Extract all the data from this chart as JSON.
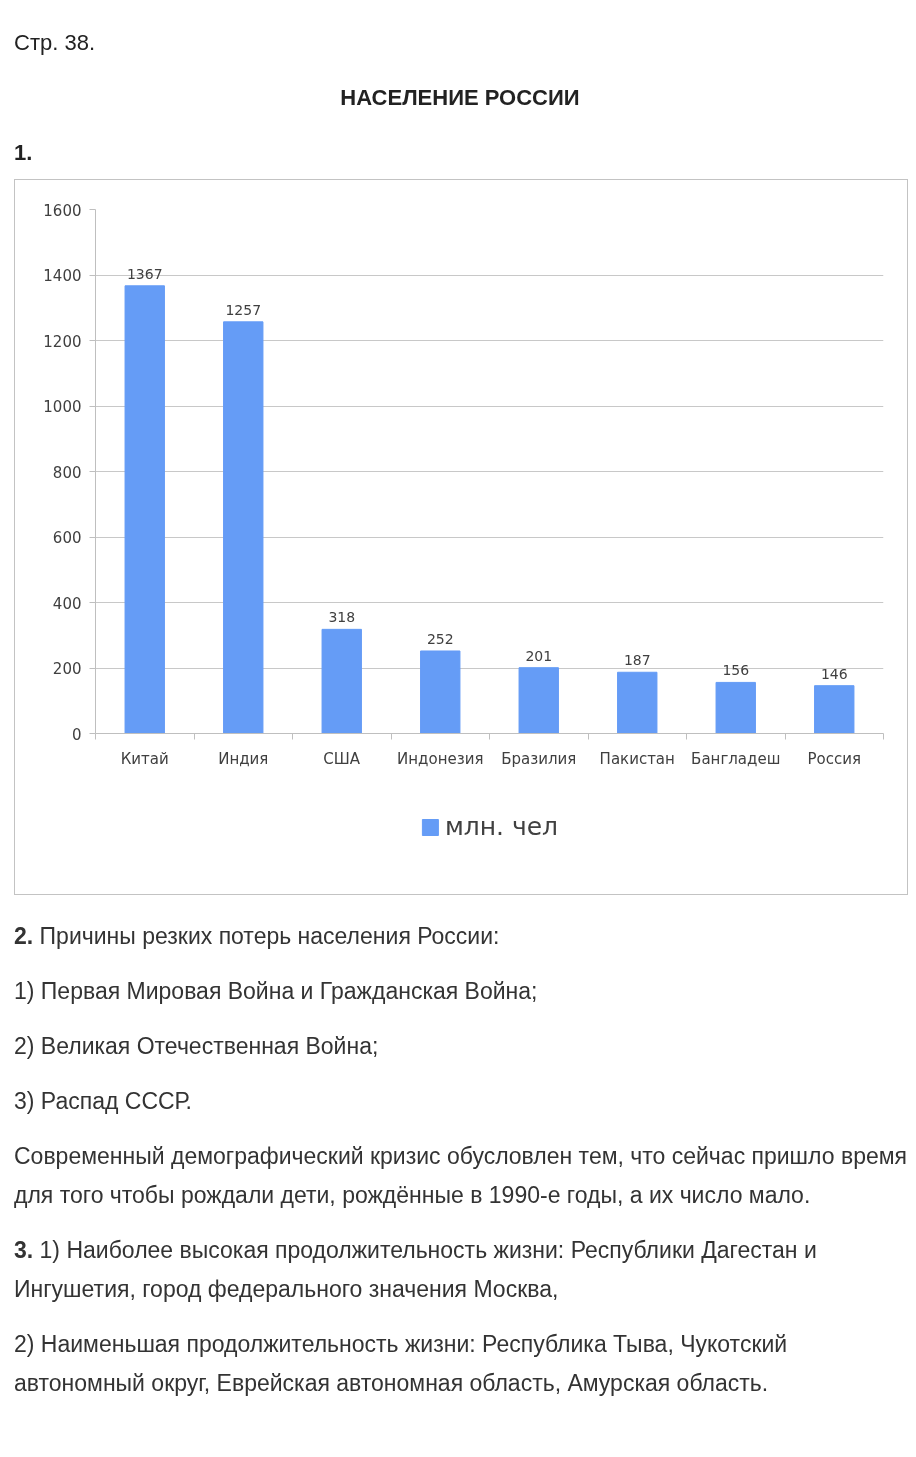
{
  "chart_data": {
    "type": "bar",
    "title": "НАСЕЛЕНИЕ РОССИИ",
    "categories": [
      "Китай",
      "Индия",
      "США",
      "Индонезия",
      "Бразилия",
      "Пакистан",
      "Бангладеш",
      "Россия"
    ],
    "series": [
      {
        "name": "млн. чел",
        "color": "#659cf6",
        "values": [
          1367,
          1257,
          318,
          252,
          201,
          187,
          156,
          146
        ]
      }
    ],
    "ylim": [
      0,
      1600
    ],
    "yticks": [
      0,
      200,
      400,
      600,
      800,
      1000,
      1200,
      1400,
      1600
    ],
    "grid": "y",
    "legend": "bottom",
    "data_labels": true,
    "annotations": [
      "Стр. 38.",
      "1.",
      "2. Причины резких потерь населения России:",
      "1) Первая Мировая Война и Гражданская Война;",
      "2) Великая Отечественная Война;",
      "3) Распад СССР.",
      "Современный демографический кризис обусловлен тем, что сейчас пришло время для того чтобы рождали дети, рождённые в 1990-е годы, а их число мало.",
      "3. 1) Наиболее высокая продолжительность жизни: Республики Дагестан и Ингушетия, город федерального значения Москва,",
      "2) Наименьшая продолжительность жизни: Республика Тыва, Чукотский автономный округ, Еврейская автономная область, Амурская область."
    ]
  }
}
